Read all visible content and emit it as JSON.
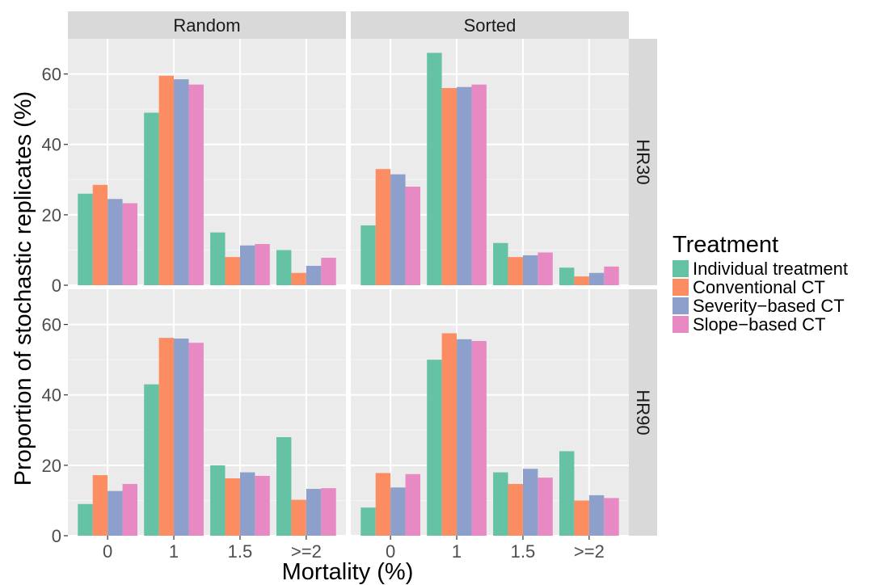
{
  "chart_data": {
    "type": "bar",
    "xlabel": "Mortality (%)",
    "ylabel": "Proportion of stochastic replicates (%)",
    "categories": [
      "0",
      "1",
      "1.5",
      ">=2"
    ],
    "ylim": [
      0,
      70
    ],
    "yticks": [
      0,
      20,
      40,
      60
    ],
    "grid": true,
    "legend": {
      "title": "Treatment",
      "position": "right"
    },
    "column_strips": [
      "Random",
      "Sorted"
    ],
    "row_strips": [
      "HR30",
      "HR90"
    ],
    "series": [
      {
        "name": "Individual treatment",
        "color": "#66c2a5"
      },
      {
        "name": "Conventional CT",
        "color": "#fc8d62"
      },
      {
        "name": "Severity−based CT",
        "color": "#8da0cb"
      },
      {
        "name": "Slope−based CT",
        "color": "#e78ac3"
      }
    ],
    "panels": [
      {
        "row": "HR30",
        "col": "Random",
        "values": [
          [
            26.0,
            49.0,
            15.0,
            10.0
          ],
          [
            28.5,
            59.5,
            8.0,
            3.5
          ],
          [
            24.5,
            58.5,
            11.3,
            5.5
          ],
          [
            23.3,
            57.0,
            11.7,
            7.8
          ]
        ]
      },
      {
        "row": "HR30",
        "col": "Sorted",
        "values": [
          [
            17.0,
            66.0,
            12.0,
            5.0
          ],
          [
            33.0,
            56.0,
            8.0,
            2.5
          ],
          [
            31.5,
            56.3,
            8.5,
            3.5
          ],
          [
            28.0,
            57.0,
            9.3,
            5.3
          ]
        ]
      },
      {
        "row": "HR90",
        "col": "Random",
        "values": [
          [
            9.0,
            43.0,
            20.0,
            28.0
          ],
          [
            17.2,
            56.2,
            16.3,
            10.2
          ],
          [
            12.7,
            56.0,
            18.0,
            13.3
          ],
          [
            14.7,
            54.8,
            17.0,
            13.5
          ]
        ]
      },
      {
        "row": "HR90",
        "col": "Sorted",
        "values": [
          [
            8.0,
            50.0,
            18.0,
            24.0
          ],
          [
            17.8,
            57.5,
            14.7,
            10.0
          ],
          [
            13.7,
            55.8,
            19.0,
            11.5
          ],
          [
            17.5,
            55.3,
            16.5,
            10.7
          ]
        ]
      }
    ]
  }
}
